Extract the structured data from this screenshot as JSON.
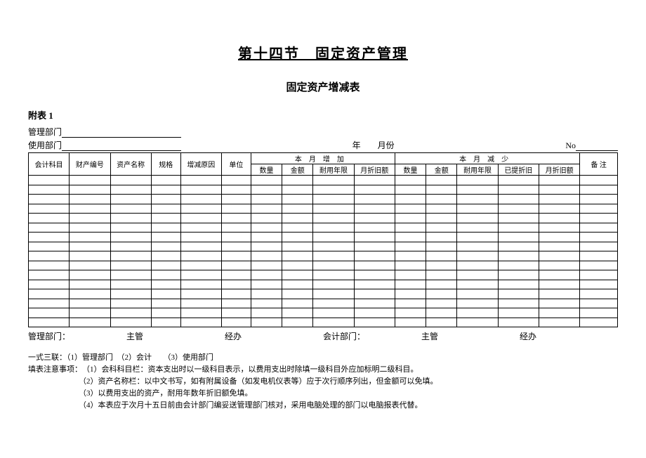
{
  "title_main": "第十四节　固定资产管理",
  "title_sub": "固定资产增减表",
  "attach_label": "附表 1",
  "meta": {
    "mgmt_dept_label": "管理部门",
    "use_dept_label": "使用部门",
    "year_suffix": "年",
    "month_suffix": "月份",
    "no_label": "No"
  },
  "headers": {
    "col_account": "会计科目",
    "col_asset_no": "财产编号",
    "col_asset_name": "资产名称",
    "col_spec": "规格",
    "col_reason": "增减原因",
    "col_unit": "单位",
    "grp_increase": "本月增加",
    "grp_decrease": "本月减少",
    "col_qty": "数量",
    "col_amount": "金额",
    "col_life": "耐用年限",
    "col_monthly_dep": "月折旧额",
    "col_accum_dep": "已提折旧",
    "col_remark": "备 注"
  },
  "row_count": 16,
  "signoff": {
    "mgmt_dept": "管理部门：",
    "supervisor": "主管",
    "handler": "经办",
    "acct_dept": "会计部门：",
    "supervisor2": "主管",
    "handler2": "经办"
  },
  "notes": {
    "triplicate": "一式三联：（1）管理部门　（2）会计　　（3）使用部门",
    "fill_label": "填表注意事项：",
    "n1": "（1）会科科目栏：资本支出时以一级科目表示，以费用支出时除填一级科目外应加标明二级科目。",
    "n2": "（2）资产名称栏：以中文书写，如有附属设备（如发电机仪表等）应于次行顺序列出，但金额可以免填。",
    "n3": "（3）以费用支出的资产，耐用年数年折旧额免填。",
    "n4": "（4）本表应于次月十五日前由会计部门编妥送管理部门核对，采用电脑处理的部门以电脑报表代替。"
  },
  "colors": {
    "text": "#000000",
    "bg": "#ffffff",
    "line": "#000000"
  }
}
